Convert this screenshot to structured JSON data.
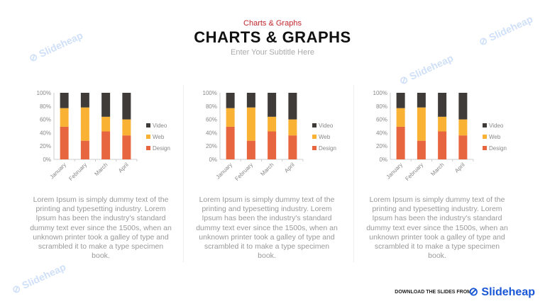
{
  "header": {
    "kicker": "Charts & Graphs",
    "title": "CHARTS & GRAPHS",
    "subtitle": "Enter Your Subtitle Here"
  },
  "colors": {
    "Design": "#E8663F",
    "Web": "#F9B233",
    "Video": "#3F3B38"
  },
  "chart_data": [
    {
      "type": "bar",
      "stacked": true,
      "categories": [
        "January",
        "February",
        "March",
        "April"
      ],
      "y_ticks": [
        "0%",
        "20%",
        "40%",
        "60%",
        "80%",
        "100%"
      ],
      "ylim": [
        0,
        100
      ],
      "legend_position": "right",
      "grid": false,
      "series": [
        {
          "name": "Design",
          "values": [
            49,
            28,
            42,
            36
          ]
        },
        {
          "name": "Web",
          "values": [
            28,
            50,
            22,
            24
          ]
        },
        {
          "name": "Video",
          "values": [
            23,
            22,
            36,
            40
          ]
        }
      ]
    },
    {
      "type": "bar",
      "stacked": true,
      "categories": [
        "January",
        "February",
        "March",
        "April"
      ],
      "y_ticks": [
        "0%",
        "20%",
        "40%",
        "60%",
        "80%",
        "100%"
      ],
      "ylim": [
        0,
        100
      ],
      "legend_position": "right",
      "grid": false,
      "series": [
        {
          "name": "Design",
          "values": [
            49,
            28,
            42,
            36
          ]
        },
        {
          "name": "Web",
          "values": [
            28,
            50,
            22,
            24
          ]
        },
        {
          "name": "Video",
          "values": [
            23,
            22,
            36,
            40
          ]
        }
      ]
    },
    {
      "type": "bar",
      "stacked": true,
      "categories": [
        "January",
        "February",
        "March",
        "April"
      ],
      "y_ticks": [
        "0%",
        "20%",
        "40%",
        "60%",
        "80%",
        "100%"
      ],
      "ylim": [
        0,
        100
      ],
      "legend_position": "right",
      "grid": false,
      "series": [
        {
          "name": "Design",
          "values": [
            49,
            28,
            42,
            36
          ]
        },
        {
          "name": "Web",
          "values": [
            28,
            50,
            22,
            24
          ]
        },
        {
          "name": "Video",
          "values": [
            23,
            22,
            36,
            40
          ]
        }
      ]
    }
  ],
  "descriptions": [
    "Lorem Ipsum is simply dummy text of the printing and typesetting industry. Lorem Ipsum has been the industry's standard dummy text ever since the 1500s, when an unknown printer took a galley of type and scrambled it to make a type specimen book.",
    "Lorem Ipsum is simply dummy text of the printing and typesetting industry. Lorem Ipsum has been the industry's standard dummy text ever since the 1500s, when an unknown printer took a galley of type and scrambled it to make a type specimen book.",
    "Lorem Ipsum is simply dummy text of the printing and typesetting industry. Lorem Ipsum has been the industry's standard dummy text ever since the 1500s, when an unknown printer took a galley of type and scrambled it to make a type specimen book."
  ],
  "watermark": "Slideheap",
  "footer": {
    "text": "DOWNLOAD THE SLIDES FROM",
    "logo": "Slideheap"
  }
}
